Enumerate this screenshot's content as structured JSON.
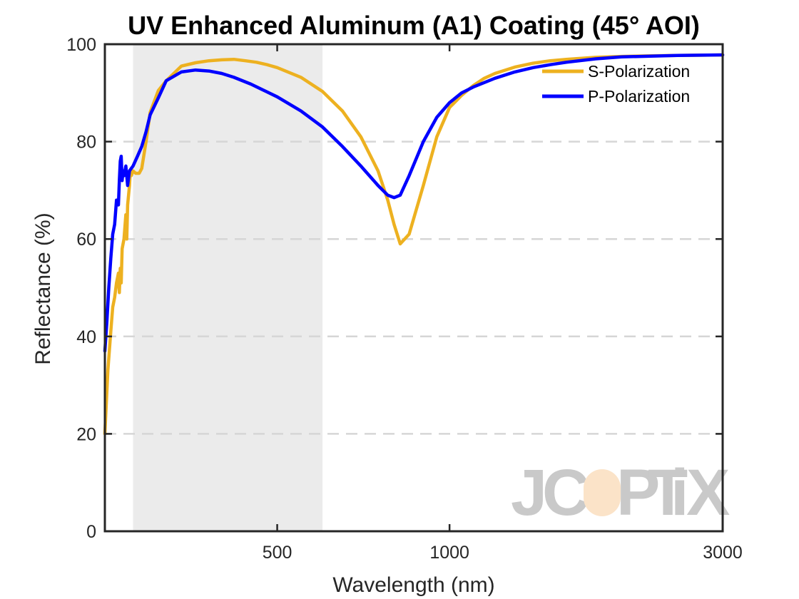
{
  "chart_data": {
    "type": "line",
    "title": "UV Enhanced Aluminum (A1) Coating  (45° AOI)",
    "xlabel": "Wavelength (nm)",
    "ylabel": "Reflectance (%)",
    "xscale": "log",
    "xlim": [
      250,
      3000
    ],
    "ylim": [
      0,
      100
    ],
    "xticks": [
      500,
      1000,
      3000
    ],
    "yticks": [
      0,
      20,
      40,
      60,
      80,
      100
    ],
    "grid": "y-dashed",
    "shaded_band": {
      "x_from": 280,
      "x_to": 600
    },
    "legend_position": "top-right",
    "series": [
      {
        "name": "S-Polarization",
        "color": "#EDB120",
        "x": [
          250,
          253,
          256,
          258,
          260,
          262,
          264,
          265,
          266,
          267,
          268,
          270,
          272,
          273,
          274,
          276,
          277,
          278,
          280,
          283,
          287,
          290,
          295,
          300,
          310,
          320,
          340,
          360,
          380,
          400,
          420,
          440,
          460,
          480,
          500,
          550,
          600,
          650,
          700,
          750,
          780,
          800,
          820,
          850,
          900,
          950,
          1000,
          1050,
          1100,
          1150,
          1200,
          1300,
          1400,
          1500,
          1600,
          1700,
          1800,
          2000,
          2200,
          2500,
          2800,
          3000
        ],
        "values": [
          20,
          33,
          41,
          46,
          48,
          51,
          53,
          49,
          54,
          51,
          58,
          60,
          65,
          60,
          67,
          71,
          74,
          73,
          74,
          73.5,
          73.5,
          74.5,
          80,
          86,
          90.5,
          92.5,
          95.5,
          96.2,
          96.6,
          96.8,
          96.9,
          96.6,
          96.3,
          95.8,
          95.2,
          93.2,
          90.3,
          86.3,
          81,
          74,
          68,
          63,
          59,
          61,
          71,
          81,
          87,
          89.5,
          91.5,
          93,
          94,
          95.3,
          96.1,
          96.6,
          96.9,
          97.1,
          97.3,
          97.5,
          97.6,
          97.7,
          97.75,
          97.8
        ]
      },
      {
        "name": "P-Polarization",
        "color": "#0000FF",
        "x": [
          250,
          252,
          254,
          256,
          258,
          260,
          262,
          264,
          265,
          266,
          267,
          268,
          269,
          270,
          272,
          274,
          276,
          278,
          280,
          285,
          290,
          295,
          300,
          310,
          320,
          340,
          360,
          380,
          400,
          420,
          450,
          480,
          500,
          550,
          600,
          650,
          700,
          750,
          780,
          800,
          820,
          850,
          900,
          950,
          1000,
          1050,
          1100,
          1200,
          1300,
          1400,
          1500,
          1600,
          1800,
          2000,
          2500,
          3000
        ],
        "values": [
          37,
          43,
          50,
          56,
          61,
          63,
          68,
          67,
          72,
          76,
          77,
          72,
          74,
          73,
          75,
          71,
          74,
          74.5,
          75,
          77,
          79,
          82,
          85.5,
          89,
          92.5,
          94.3,
          94.7,
          94.5,
          94,
          93.2,
          91.8,
          90.2,
          89.2,
          86.3,
          83,
          79,
          75,
          71,
          69,
          68.5,
          69,
          73,
          80,
          85,
          88,
          90,
          91.2,
          93,
          94.3,
          95.2,
          95.8,
          96.3,
          97,
          97.4,
          97.7,
          97.8
        ]
      }
    ],
    "watermark_text": "JCOPTIX"
  }
}
